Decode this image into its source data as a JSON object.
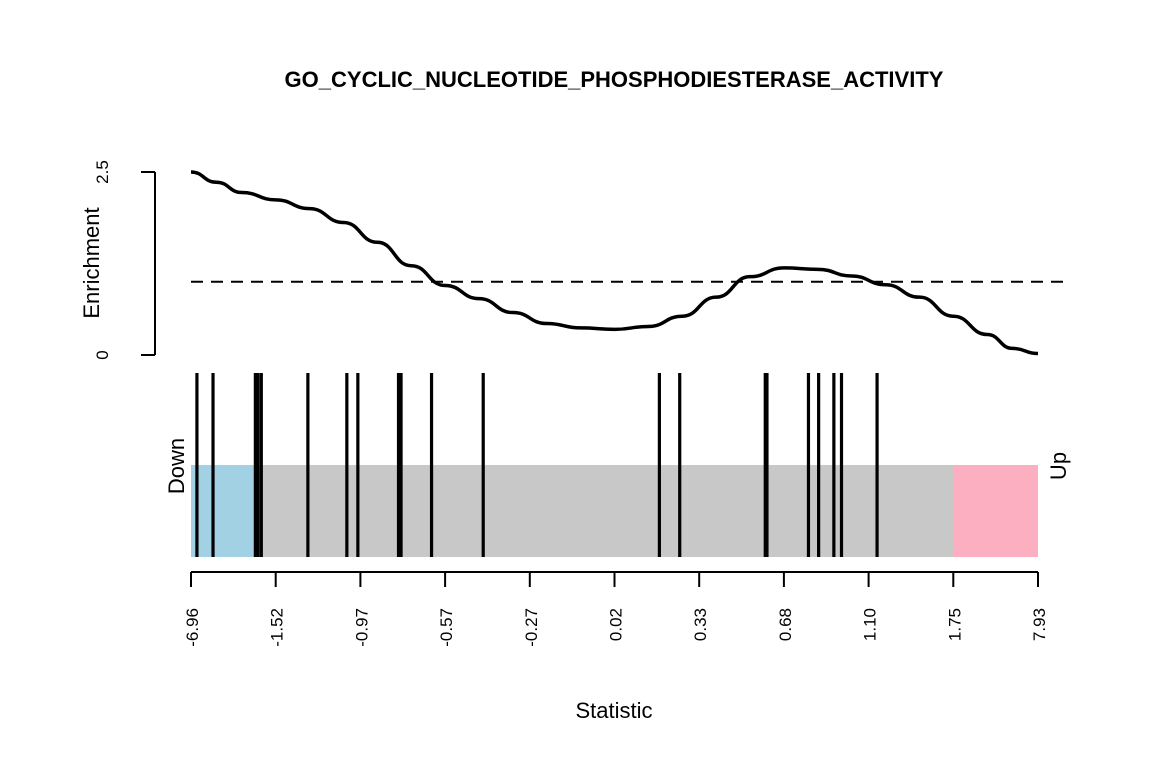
{
  "chart_data": {
    "type": "barcode",
    "title": "GO_CYCLIC_NUCLEOTIDE_PHOSPHODIESTERASE_ACTIVITY",
    "xlabel": "Statistic",
    "ylabel": "Enrichment",
    "down_label": "Down",
    "up_label": "Up",
    "x_tick_labels": [
      "-6.96",
      "-1.52",
      "-0.97",
      "-0.57",
      "-0.27",
      "0.02",
      "0.33",
      "0.68",
      "1.10",
      "1.75",
      "7.93"
    ],
    "y_ticks": [
      {
        "value": 0,
        "label": "0"
      },
      {
        "value": 2.5,
        "label": "2.5"
      }
    ],
    "ylim": [
      0,
      2.5
    ],
    "x_rank_range": [
      0,
      1
    ],
    "reference_line": 1,
    "enrichment_curve": [
      {
        "x": 0.0,
        "y": 2.5
      },
      {
        "x": 0.03,
        "y": 2.36
      },
      {
        "x": 0.06,
        "y": 2.22
      },
      {
        "x": 0.1,
        "y": 2.12
      },
      {
        "x": 0.14,
        "y": 2.0
      },
      {
        "x": 0.18,
        "y": 1.81
      },
      {
        "x": 0.22,
        "y": 1.54
      },
      {
        "x": 0.26,
        "y": 1.22
      },
      {
        "x": 0.3,
        "y": 0.95
      },
      {
        "x": 0.34,
        "y": 0.77
      },
      {
        "x": 0.38,
        "y": 0.58
      },
      {
        "x": 0.42,
        "y": 0.43
      },
      {
        "x": 0.46,
        "y": 0.37
      },
      {
        "x": 0.5,
        "y": 0.35
      },
      {
        "x": 0.54,
        "y": 0.39
      },
      {
        "x": 0.58,
        "y": 0.53
      },
      {
        "x": 0.62,
        "y": 0.79
      },
      {
        "x": 0.66,
        "y": 1.07
      },
      {
        "x": 0.7,
        "y": 1.19
      },
      {
        "x": 0.74,
        "y": 1.17
      },
      {
        "x": 0.78,
        "y": 1.08
      },
      {
        "x": 0.82,
        "y": 0.96
      },
      {
        "x": 0.86,
        "y": 0.79
      },
      {
        "x": 0.9,
        "y": 0.53
      },
      {
        "x": 0.94,
        "y": 0.28
      },
      {
        "x": 0.97,
        "y": 0.09
      },
      {
        "x": 1.0,
        "y": 0.02
      }
    ],
    "gene_set_positions": [
      0.007,
      0.026,
      0.076,
      0.079,
      0.083,
      0.138,
      0.184,
      0.197,
      0.245,
      0.248,
      0.284,
      0.345,
      0.553,
      0.577,
      0.678,
      0.679,
      0.68,
      0.729,
      0.741,
      0.759,
      0.768,
      0.81
    ],
    "colors": {
      "down": "#a1d1e2",
      "middle": "#c8c8c8",
      "up": "#fcafc0",
      "line": "#000000"
    }
  }
}
